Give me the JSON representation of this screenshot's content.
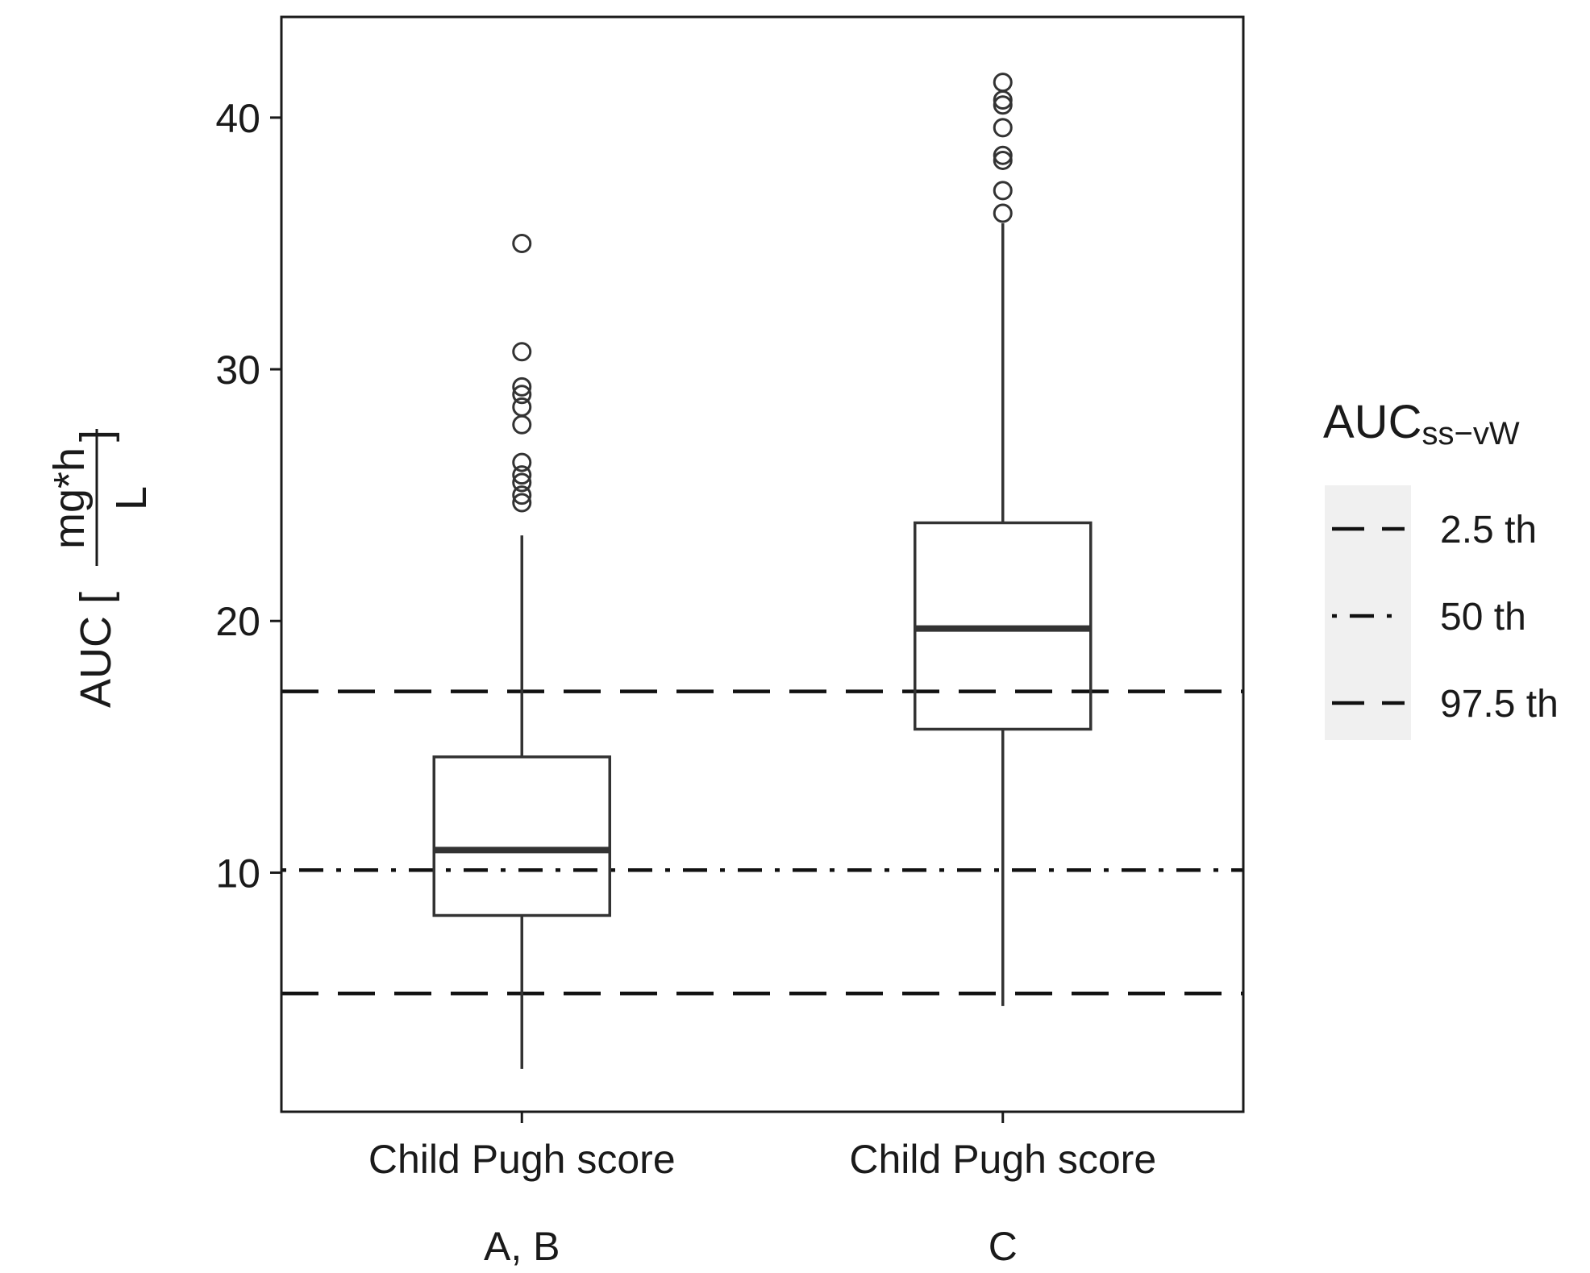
{
  "chart_data": {
    "type": "box",
    "title": "",
    "ylabel": {
      "prefix": "AUC [",
      "numerator": "mg*h",
      "denominator": "L",
      "suffix": "]"
    },
    "xlabel": "",
    "ylim": [
      0.5,
      44
    ],
    "yticks": [
      10,
      20,
      30,
      40
    ],
    "grid": false,
    "categories": [
      {
        "line1": "Child Pugh score",
        "line2": "A, B"
      },
      {
        "line1": "Child Pugh score",
        "line2": "C"
      }
    ],
    "boxes": [
      {
        "whisker_low": 2.2,
        "q1": 8.3,
        "median": 10.9,
        "q3": 14.6,
        "whisker_high": 23.4,
        "outliers": [
          24.7,
          25.0,
          25.5,
          25.8,
          26.3,
          27.8,
          28.5,
          29.0,
          29.3,
          30.7,
          35.0
        ]
      },
      {
        "whisker_low": 4.7,
        "q1": 15.7,
        "median": 19.7,
        "q3": 23.9,
        "whisker_high": 35.8,
        "outliers": [
          36.2,
          37.1,
          38.3,
          38.5,
          39.6,
          40.5,
          40.7,
          41.4
        ]
      }
    ],
    "reference_lines": [
      {
        "label": "2.5 th",
        "value": 5.2,
        "style": "long-dash"
      },
      {
        "label": "50 th",
        "value": 10.1,
        "style": "dot-dash"
      },
      {
        "label": "97.5 th",
        "value": 17.2,
        "style": "long-dash"
      }
    ],
    "legend": {
      "title_main": "AUC",
      "title_sub": "ss−vW",
      "position": "right"
    },
    "colors": {
      "box_line": "#333333",
      "ref_line": "#111111",
      "legend_bg": "#f0f0f0"
    }
  }
}
